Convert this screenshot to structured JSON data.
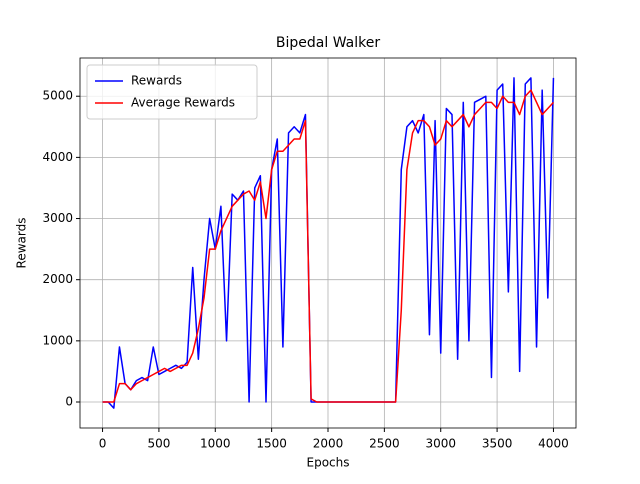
{
  "chart_data": {
    "type": "line",
    "title": "Bipedal Walker",
    "x_label": "Epochs",
    "y_label": "Rewards",
    "x": [
      0,
      50,
      100,
      150,
      200,
      250,
      300,
      350,
      400,
      450,
      500,
      550,
      600,
      650,
      700,
      750,
      800,
      850,
      900,
      950,
      1000,
      1050,
      1100,
      1150,
      1200,
      1250,
      1300,
      1350,
      1400,
      1450,
      1500,
      1550,
      1600,
      1650,
      1700,
      1750,
      1800,
      1850,
      1900,
      1950,
      2000,
      2050,
      2100,
      2150,
      2200,
      2250,
      2300,
      2350,
      2400,
      2450,
      2500,
      2550,
      2600,
      2650,
      2700,
      2750,
      2800,
      2850,
      2900,
      2950,
      3000,
      3050,
      3100,
      3150,
      3200,
      3250,
      3300,
      3350,
      3400,
      3450,
      3500,
      3550,
      3600,
      3650,
      3700,
      3750,
      3800,
      3850,
      3900,
      3950,
      4000
    ],
    "series": [
      {
        "name": "Rewards",
        "color": "#0000ff",
        "values": [
          0,
          0,
          -100,
          900,
          300,
          200,
          350,
          400,
          350,
          900,
          450,
          500,
          550,
          600,
          550,
          650,
          2200,
          700,
          2000,
          3000,
          2500,
          3200,
          1000,
          3400,
          3300,
          3450,
          0,
          3500,
          3700,
          0,
          3800,
          4300,
          900,
          4400,
          4500,
          4400,
          4700,
          0,
          0,
          0,
          0,
          0,
          0,
          0,
          0,
          0,
          0,
          0,
          0,
          0,
          0,
          0,
          0,
          3800,
          4500,
          4600,
          4400,
          4700,
          1100,
          4600,
          800,
          4800,
          4700,
          700,
          4900,
          1000,
          4900,
          4950,
          5000,
          400,
          5100,
          5200,
          1800,
          5300,
          500,
          5200,
          5300,
          900,
          5100,
          1700,
          5300
        ]
      },
      {
        "name": "Average Rewards",
        "color": "#ff0000",
        "values": [
          0,
          0,
          0,
          300,
          300,
          200,
          300,
          350,
          400,
          450,
          500,
          550,
          500,
          550,
          600,
          600,
          800,
          1200,
          1700,
          2500,
          2500,
          2800,
          3000,
          3200,
          3300,
          3400,
          3450,
          3300,
          3600,
          3000,
          3800,
          4100,
          4100,
          4200,
          4300,
          4300,
          4600,
          50,
          0,
          0,
          0,
          0,
          0,
          0,
          0,
          0,
          0,
          0,
          0,
          0,
          0,
          0,
          0,
          1500,
          3800,
          4400,
          4600,
          4600,
          4500,
          4200,
          4300,
          4600,
          4500,
          4600,
          4700,
          4500,
          4700,
          4800,
          4900,
          4900,
          4800,
          5000,
          4900,
          4900,
          4700,
          5000,
          5100,
          4900,
          4700,
          4800,
          4900
        ]
      }
    ],
    "xlim": [
      -200,
      4200
    ],
    "ylim": [
      -425,
      5625
    ],
    "xticks": [
      0,
      500,
      1000,
      1500,
      2000,
      2500,
      3000,
      3500,
      4000
    ],
    "yticks": [
      0,
      1000,
      2000,
      3000,
      4000,
      5000
    ],
    "grid": true,
    "legend": "upper-left"
  }
}
